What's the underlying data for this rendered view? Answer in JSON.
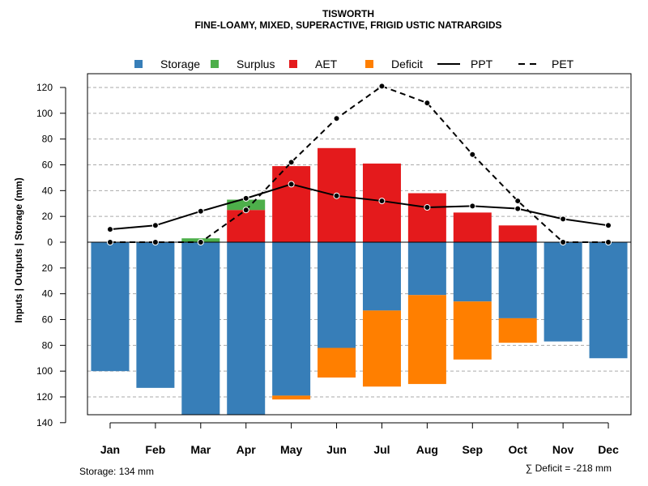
{
  "chart_data": {
    "type": "bar",
    "title": "TISWORTH",
    "subtitle": "FINE-LOAMY, MIXED, SUPERACTIVE, FRIGID USTIC NATRARGIDS",
    "ylabel": "Inputs | Outputs | Storage    (mm)",
    "xlabel": "",
    "ylim": [
      -140,
      130
    ],
    "yticks": [
      -140,
      -120,
      -100,
      -80,
      -60,
      -40,
      -20,
      0,
      20,
      40,
      60,
      80,
      100,
      120
    ],
    "ytick_labels": [
      "140",
      "120",
      "100",
      "80",
      "60",
      "40",
      "20",
      "0",
      "20",
      "40",
      "60",
      "80",
      "100",
      "120"
    ],
    "grid": true,
    "legend_position": "top",
    "categories": [
      "Jan",
      "Feb",
      "Mar",
      "Apr",
      "May",
      "Jun",
      "Jul",
      "Aug",
      "Sep",
      "Oct",
      "Nov",
      "Dec"
    ],
    "legend": [
      {
        "name": "Storage",
        "kind": "box",
        "color": "#377EB8"
      },
      {
        "name": "Surplus",
        "kind": "box",
        "color": "#4DAF4A"
      },
      {
        "name": "AET",
        "kind": "box",
        "color": "#E41A1C"
      },
      {
        "name": "Deficit",
        "kind": "box",
        "color": "#FF7F00"
      },
      {
        "name": "PPT",
        "kind": "solid",
        "color": "#000000"
      },
      {
        "name": "PET",
        "kind": "dashed",
        "color": "#000000"
      }
    ],
    "series": [
      {
        "name": "Storage",
        "color": "#377EB8",
        "values": [
          100,
          113,
          134,
          134,
          119,
          82,
          53,
          41,
          46,
          59,
          77,
          90
        ]
      },
      {
        "name": "Deficit",
        "color": "#FF7F00",
        "values": [
          0,
          0,
          0,
          0,
          3,
          23,
          59,
          69,
          45,
          19,
          0,
          0
        ]
      },
      {
        "name": "AET",
        "color": "#E41A1C",
        "values": [
          0,
          0,
          0,
          25,
          59,
          73,
          61,
          38,
          23,
          13,
          0,
          0
        ]
      },
      {
        "name": "Surplus",
        "color": "#4DAF4A",
        "values": [
          0,
          0,
          3,
          8,
          0,
          0,
          0,
          0,
          0,
          0,
          0,
          0
        ]
      },
      {
        "name": "PPT",
        "color": "#000000",
        "values": [
          10,
          13,
          24,
          34,
          45,
          36,
          32,
          27,
          28,
          26,
          18,
          13
        ]
      },
      {
        "name": "PET",
        "color": "#000000",
        "values": [
          0,
          0,
          0,
          25,
          62,
          96,
          121,
          108,
          68,
          32,
          0,
          0
        ]
      }
    ],
    "storage_note": "Storage: 134 mm",
    "deficit_note": "∑ Deficit = -218 mm"
  }
}
